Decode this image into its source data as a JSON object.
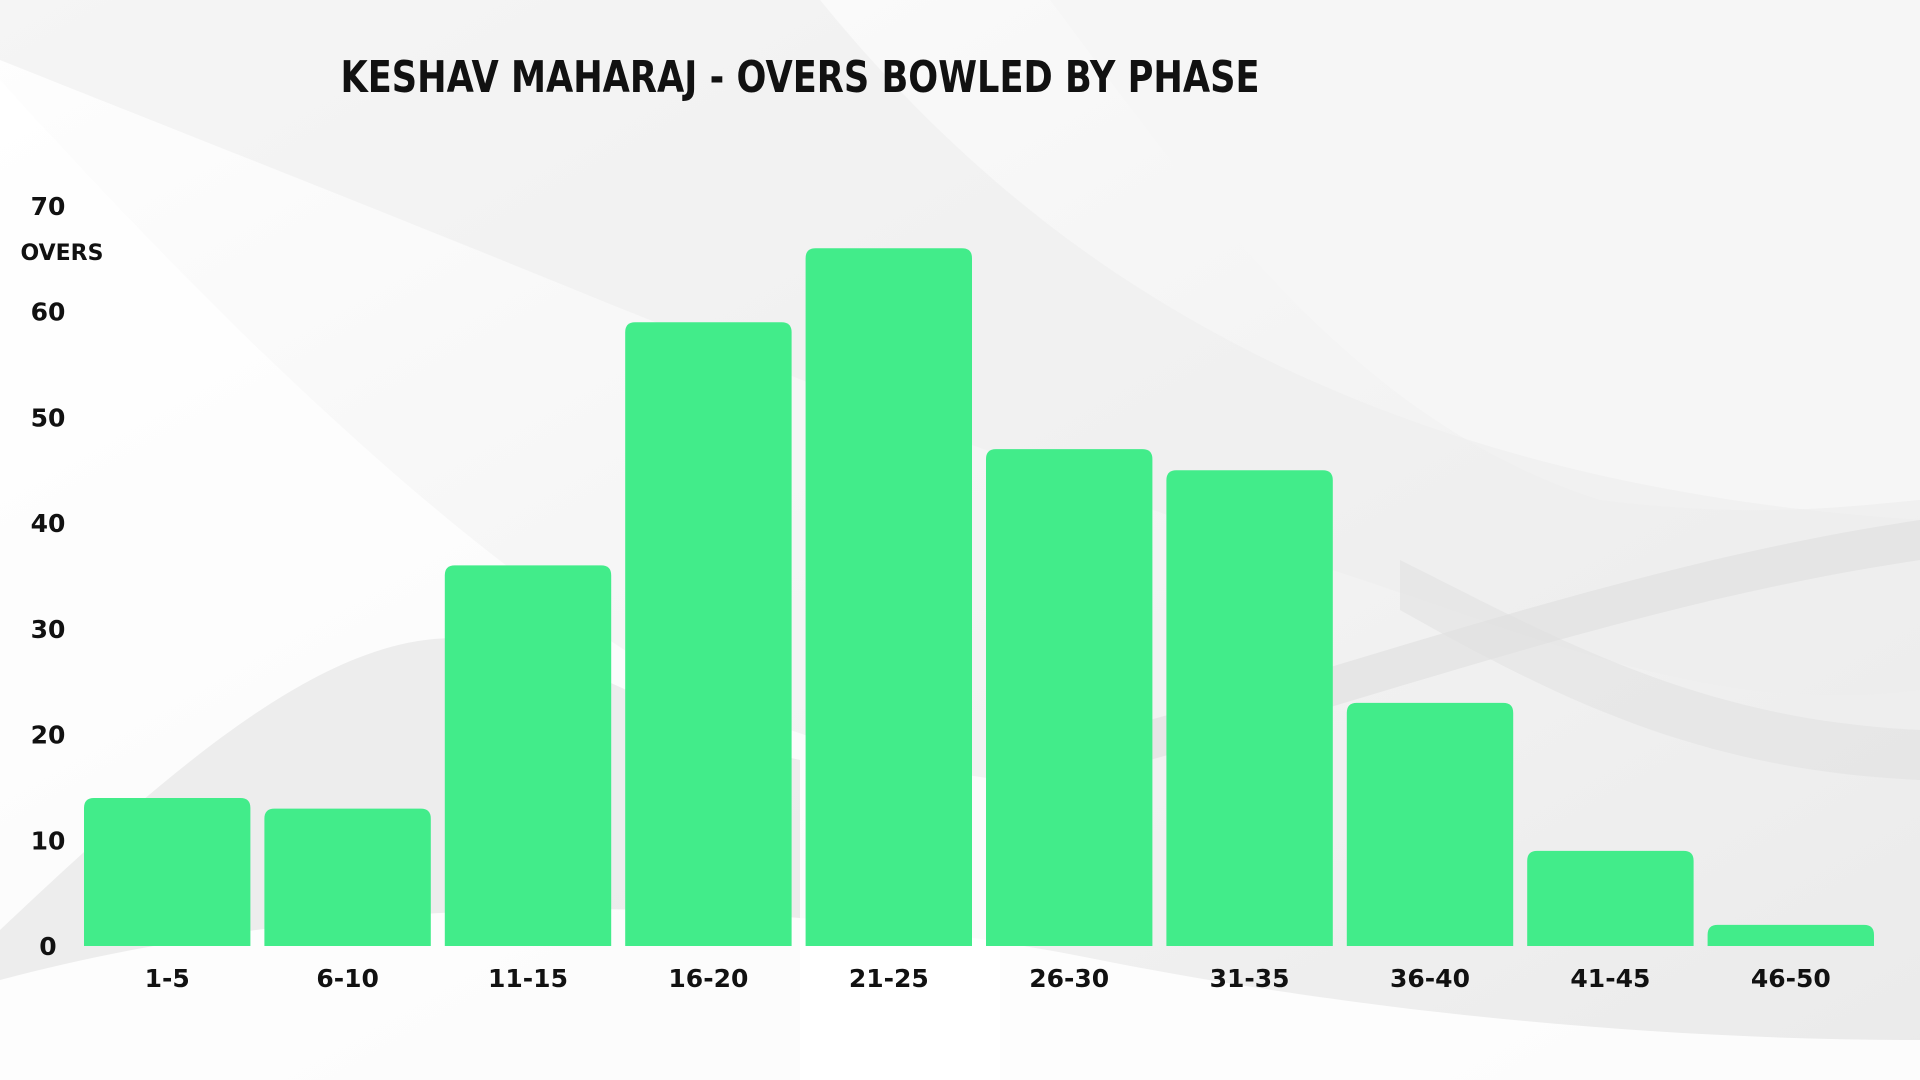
{
  "chart_data": {
    "type": "bar",
    "title": "KESHAV MAHARAJ - OVERS BOWLED BY PHASE",
    "xlabel": "",
    "ylabel": "OVERS",
    "categories": [
      "1-5",
      "6-10",
      "11-15",
      "16-20",
      "21-25",
      "26-30",
      "31-35",
      "36-40",
      "41-45",
      "46-50"
    ],
    "values": [
      14,
      13,
      36,
      59,
      66,
      47,
      45,
      23,
      9,
      2
    ],
    "ylim": [
      0,
      70
    ],
    "yticks": [
      0,
      10,
      20,
      30,
      40,
      50,
      60,
      70
    ],
    "grid": false,
    "legend": "none",
    "colors": {
      "bar": "#42EC8A",
      "text": "#111111",
      "background": "#f7f7f7"
    }
  }
}
